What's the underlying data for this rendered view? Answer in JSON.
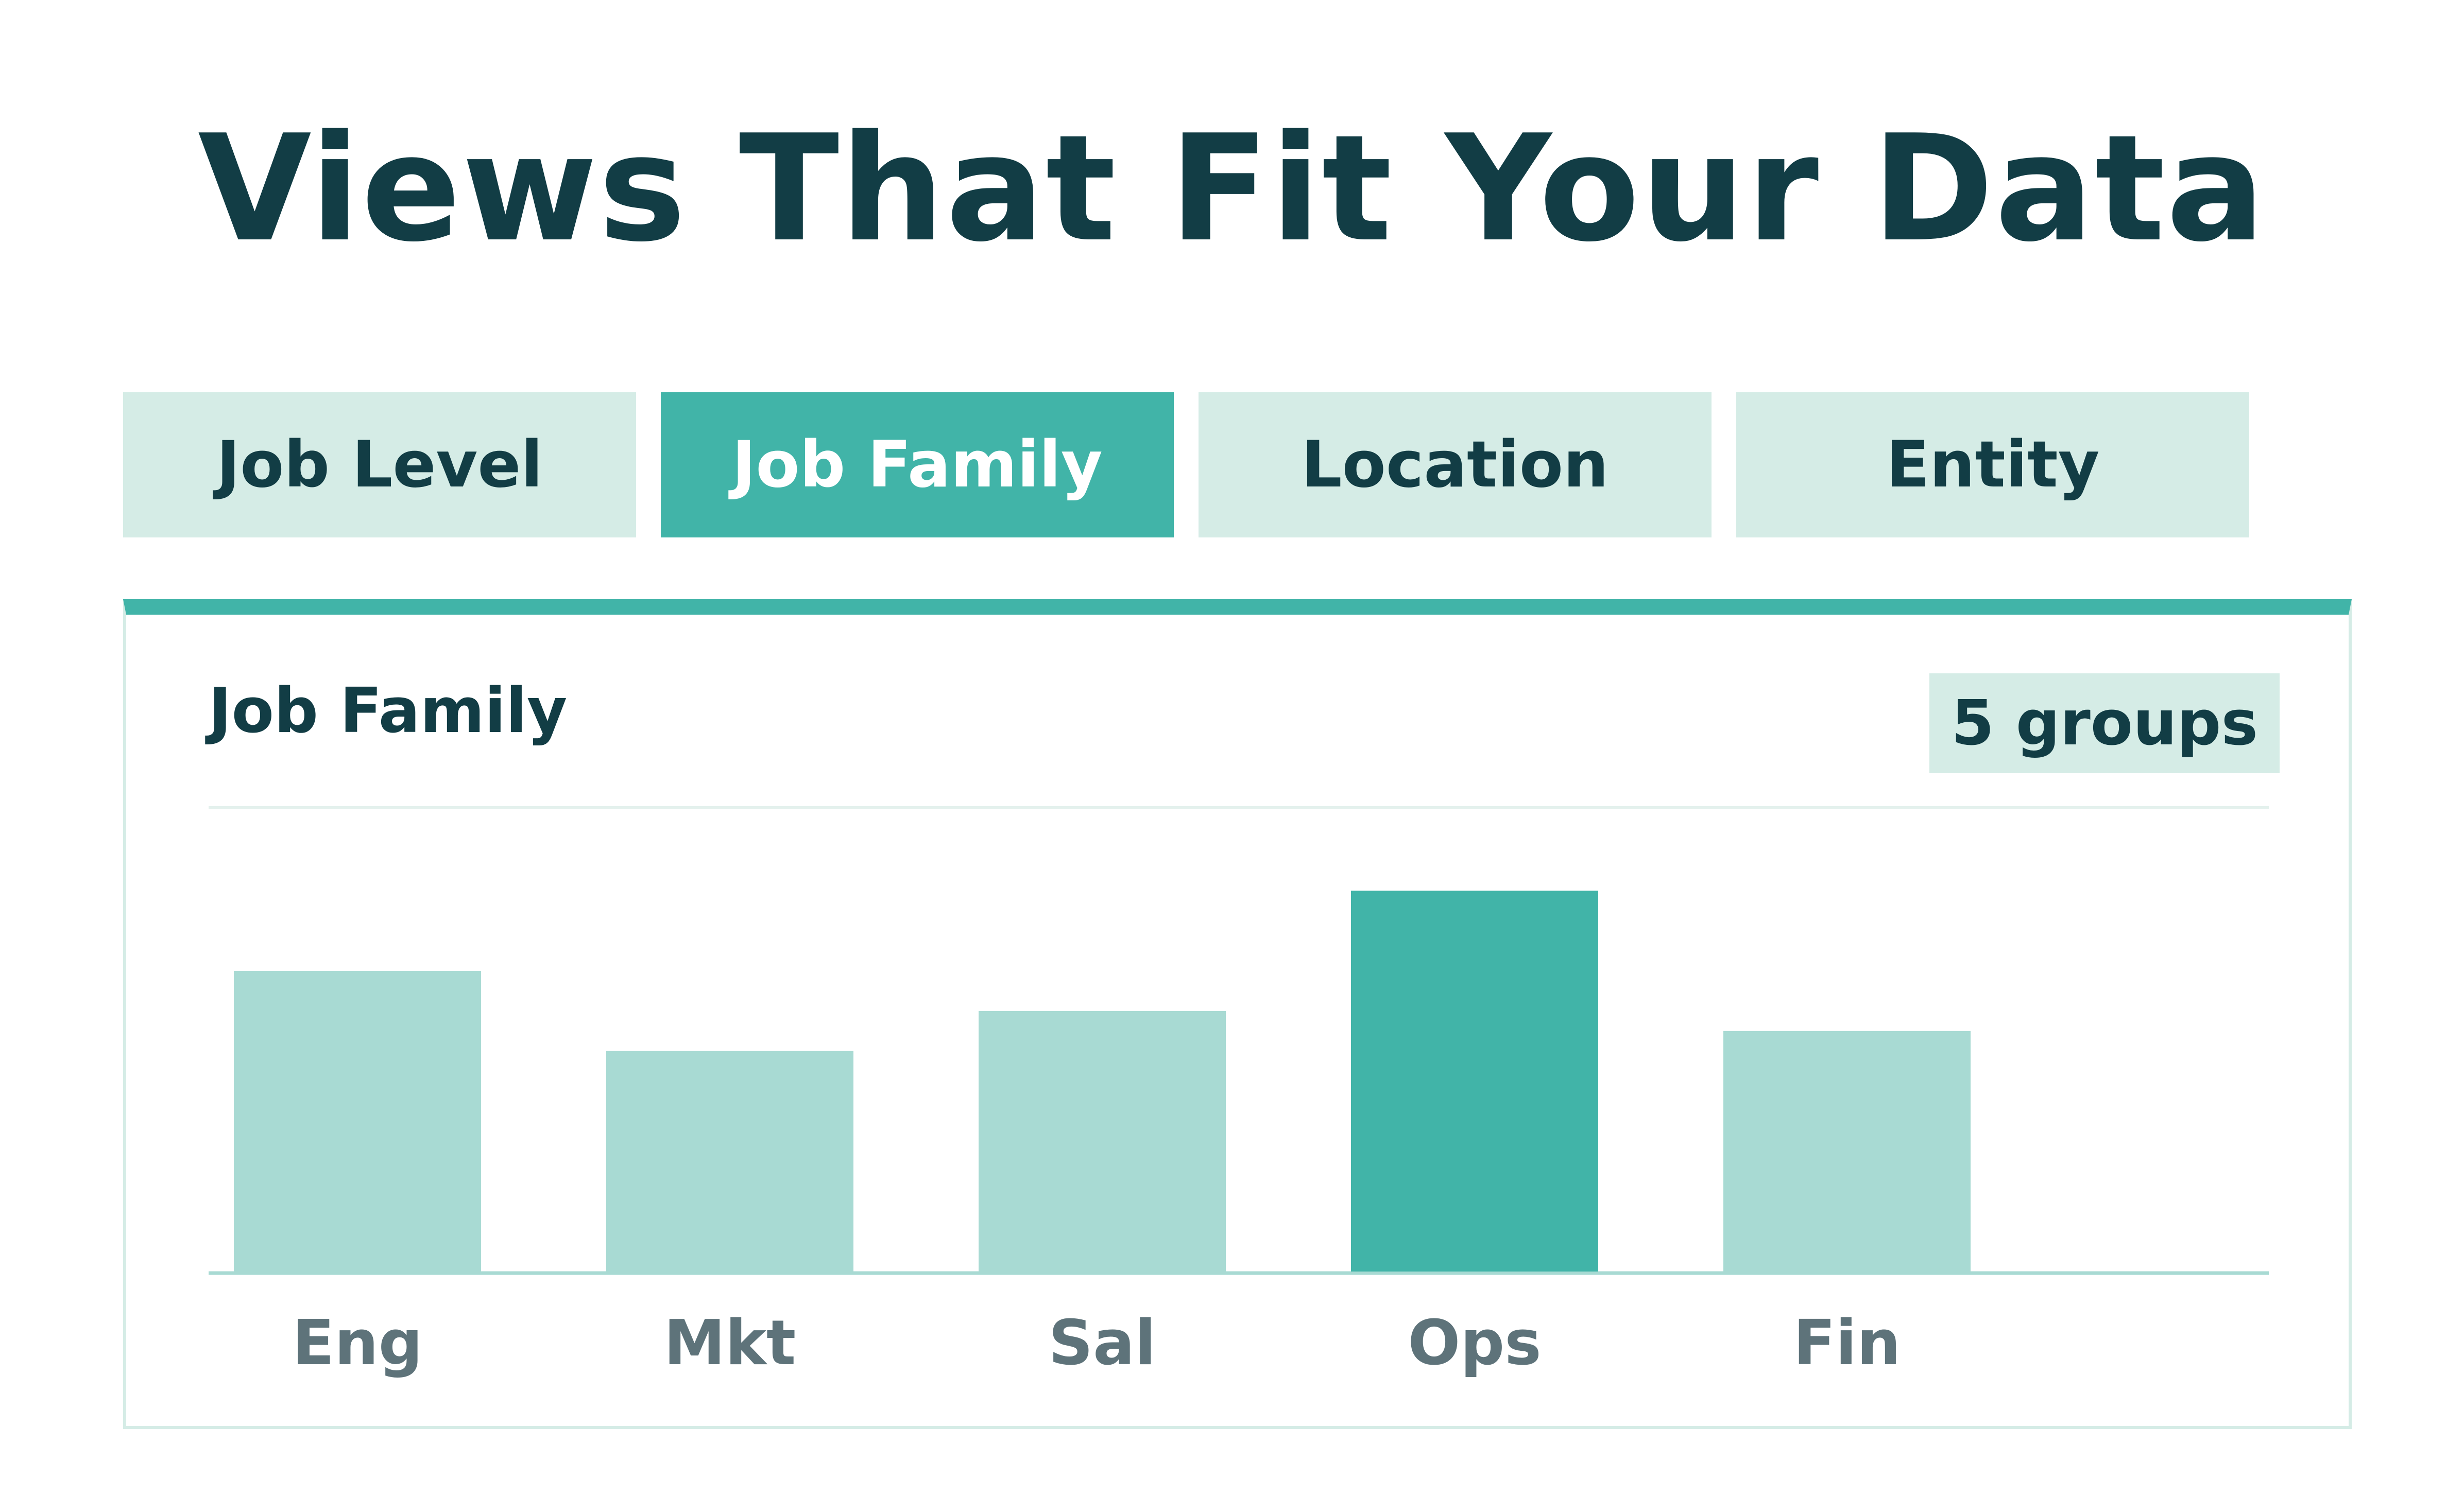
{
  "headline": "Views That Fit Your Data",
  "tabs": [
    {
      "label": "Job Level",
      "active": false
    },
    {
      "label": "Job Family",
      "active": true
    },
    {
      "label": "Location",
      "active": false
    },
    {
      "label": "Entity",
      "active": false
    }
  ],
  "panel": {
    "title": "Job Family",
    "badge": "5 groups"
  },
  "colors": {
    "dark": "#123d45",
    "accent": "#41b4a8",
    "light": "#d5ece6",
    "bar_muted": "#a8dad3",
    "label_gray": "#5e737a"
  },
  "chart_data": {
    "type": "bar",
    "categories": [
      "Eng",
      "Mkt",
      "Sal",
      "Ops",
      "Fin"
    ],
    "values": [
      60,
      44,
      52,
      76,
      48
    ],
    "highlight": "Ops",
    "ylim": [
      0,
      90
    ],
    "grid": false,
    "title": "",
    "xlabel": "",
    "ylabel": ""
  }
}
